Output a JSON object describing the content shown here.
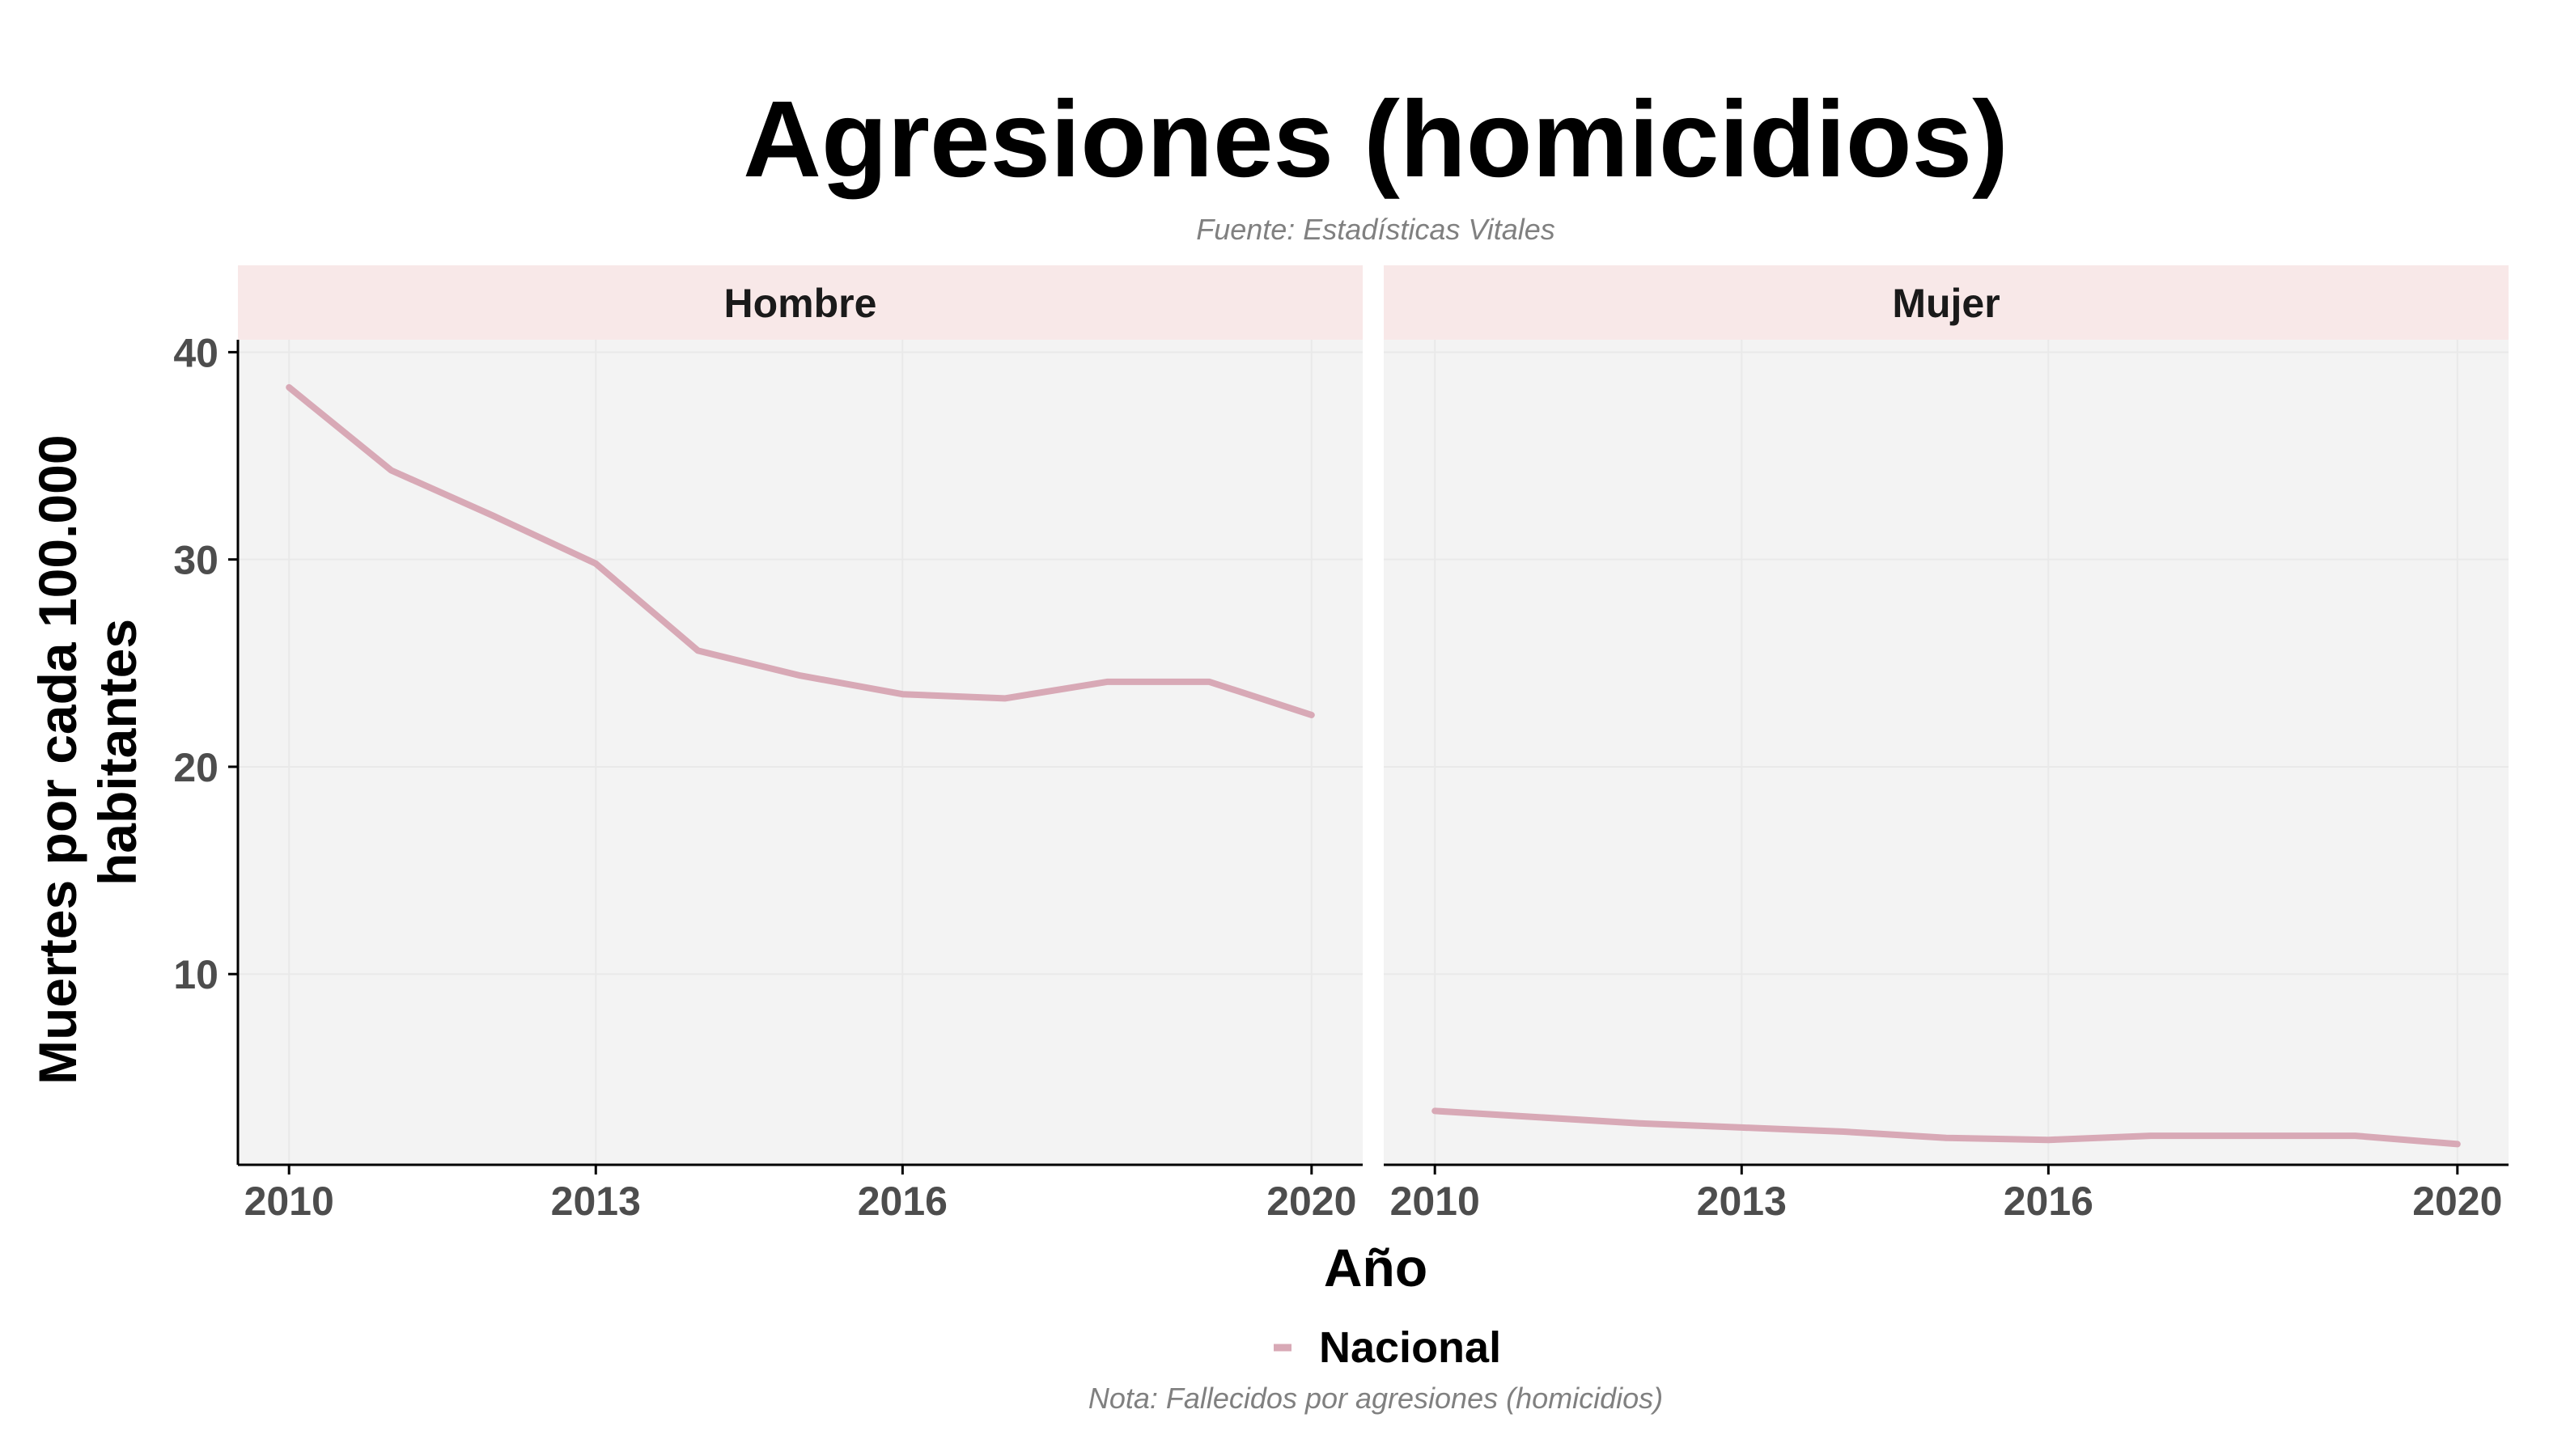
{
  "chart_data": {
    "type": "line",
    "title": "Agresiones (homicidios)",
    "subtitle": "Fuente: Estadísticas Vitales",
    "caption": "Nota: Fallecidos por agresiones (homicidios)",
    "xlabel": "Año",
    "ylabel_lines": [
      "Muertes por cada 100.000",
      "habitantes"
    ],
    "x_ticks": [
      2010,
      2013,
      2016,
      2020
    ],
    "y_ticks": [
      10,
      20,
      30,
      40
    ],
    "xlim": [
      2009.5,
      2020.5
    ],
    "ylim": [
      0.8,
      40.6
    ],
    "grid": true,
    "legend_position": "bottom",
    "legend": [
      {
        "name": "Nacional",
        "color": "#d8a9b6"
      }
    ],
    "colors": {
      "line": "#d8a9b6",
      "panel": "#f3f3f3",
      "strip": "#f8e8e8",
      "grid": "#e9e9e9"
    },
    "panels": [
      {
        "label": "Hombre",
        "series": [
          {
            "name": "Nacional",
            "x": [
              2010,
              2011,
              2012,
              2013,
              2014,
              2015,
              2016,
              2017,
              2018,
              2019,
              2020
            ],
            "y": [
              38.3,
              34.3,
              32.1,
              29.8,
              25.6,
              24.4,
              23.5,
              23.3,
              24.1,
              24.1,
              22.5
            ]
          }
        ]
      },
      {
        "label": "Mujer",
        "series": [
          {
            "name": "Nacional",
            "x": [
              2010,
              2011,
              2012,
              2013,
              2014,
              2015,
              2016,
              2017,
              2018,
              2019,
              2020
            ],
            "y": [
              3.4,
              3.1,
              2.8,
              2.6,
              2.4,
              2.1,
              2.0,
              2.2,
              2.2,
              2.2,
              1.8
            ]
          }
        ]
      }
    ]
  }
}
